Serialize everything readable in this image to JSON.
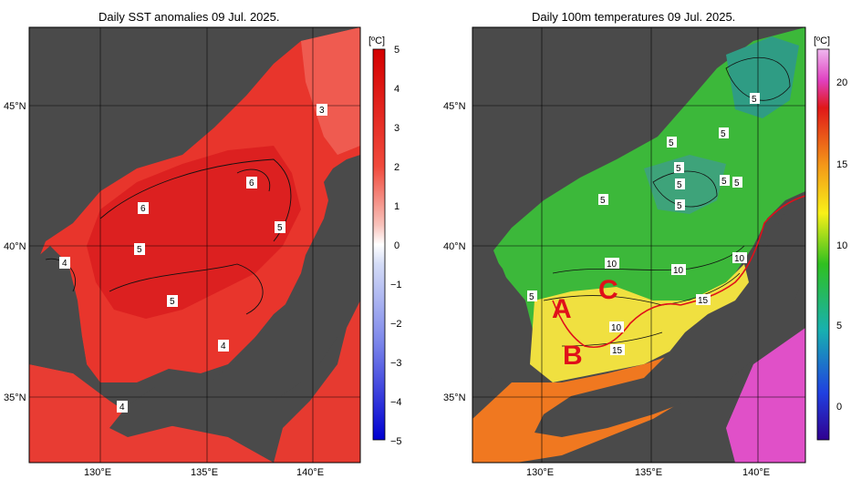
{
  "left_panel": {
    "title": "Daily SST anomalies 09 Jul. 2025.",
    "unit": "[ºC]",
    "colorbar_ticks": [
      "5",
      "4",
      "3",
      "2",
      "1",
      "0",
      "−1",
      "−2",
      "−3",
      "−4",
      "−5"
    ],
    "contour_labels": [
      "3",
      "6",
      "6",
      "5",
      "5",
      "4",
      "5",
      "4",
      "4"
    ]
  },
  "right_panel": {
    "title": "Daily 100m temperatures 09 Jul. 2025.",
    "unit": "[ºC]",
    "colorbar_ticks": [
      "20",
      "15",
      "10",
      "5",
      "0"
    ],
    "contour_labels": [
      "5",
      "5",
      "5",
      "5",
      "5",
      "5",
      "5",
      "5",
      "5",
      "10",
      "10",
      "10",
      "10",
      "15",
      "15",
      "5"
    ],
    "region_labels": [
      "A",
      "B",
      "C"
    ]
  },
  "axes": {
    "lat_labels": [
      "45°N",
      "40°N",
      "35°N"
    ],
    "lon_labels": [
      "130°E",
      "135°E",
      "140°E"
    ]
  },
  "colors": {
    "land": "#4a4a4a",
    "anomaly_fill": "#e8332b",
    "anomaly_strong": "#d81e1e",
    "marker_red": "#e0101a"
  }
}
